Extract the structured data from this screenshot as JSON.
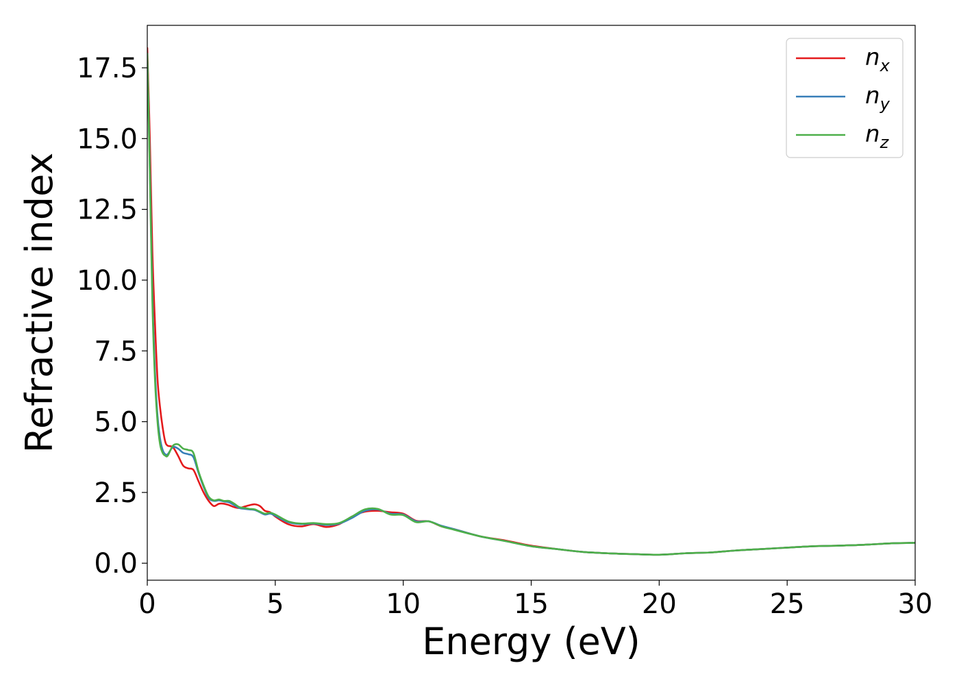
{
  "chart_data": {
    "type": "line",
    "xlabel": "Energy (eV)",
    "ylabel": "Refractive index",
    "xlim": [
      0,
      30
    ],
    "ylim": [
      -0.6,
      19.0
    ],
    "xticks": [
      0,
      5,
      10,
      15,
      20,
      25,
      30
    ],
    "xtick_labels": [
      "0",
      "5",
      "10",
      "15",
      "20",
      "25",
      "30"
    ],
    "yticks": [
      0.0,
      2.5,
      5.0,
      7.5,
      10.0,
      12.5,
      15.0,
      17.5
    ],
    "ytick_labels": [
      "0.0",
      "2.5",
      "5.0",
      "7.5",
      "10.0",
      "12.5",
      "15.0",
      "17.5"
    ],
    "grid": false,
    "legend_position": "top-right",
    "series": [
      {
        "name": "n",
        "subscript": "x",
        "color": "#e41a1c",
        "x": [
          0,
          0.1,
          0.2,
          0.3,
          0.4,
          0.5,
          0.6,
          0.7,
          0.8,
          1.0,
          1.2,
          1.4,
          1.6,
          1.8,
          2.0,
          2.2,
          2.4,
          2.6,
          2.8,
          3.0,
          3.2,
          3.4,
          3.6,
          3.8,
          4.0,
          4.2,
          4.4,
          4.6,
          4.8,
          5.0,
          5.5,
          6.0,
          6.5,
          7.0,
          7.5,
          8.0,
          8.5,
          9.0,
          9.5,
          10.0,
          10.5,
          11.0,
          11.5,
          12.0,
          13.0,
          14.0,
          15.0,
          16.0,
          17.0,
          18.0,
          19.0,
          20.0,
          21.0,
          22.0,
          23.0,
          24.0,
          25.0,
          26.0,
          27.0,
          28.0,
          29.0,
          30.0
        ],
        "y": [
          18.2,
          15.0,
          11.0,
          8.5,
          6.5,
          5.5,
          4.8,
          4.3,
          4.15,
          4.1,
          3.8,
          3.45,
          3.35,
          3.3,
          2.9,
          2.5,
          2.2,
          2.02,
          2.1,
          2.1,
          2.05,
          1.98,
          1.95,
          2.0,
          2.05,
          2.08,
          2.02,
          1.85,
          1.8,
          1.65,
          1.38,
          1.3,
          1.38,
          1.28,
          1.38,
          1.65,
          1.82,
          1.85,
          1.8,
          1.75,
          1.5,
          1.48,
          1.3,
          1.2,
          0.95,
          0.8,
          0.62,
          0.5,
          0.4,
          0.35,
          0.32,
          0.3,
          0.35,
          0.38,
          0.45,
          0.5,
          0.55,
          0.6,
          0.62,
          0.65,
          0.7,
          0.72
        ]
      },
      {
        "name": "n",
        "subscript": "y",
        "color": "#377eb8",
        "x": [
          0,
          0.1,
          0.2,
          0.3,
          0.4,
          0.5,
          0.6,
          0.7,
          0.8,
          1.0,
          1.2,
          1.4,
          1.6,
          1.8,
          2.0,
          2.2,
          2.4,
          2.6,
          2.8,
          3.0,
          3.2,
          3.4,
          3.6,
          3.8,
          4.0,
          4.2,
          4.4,
          4.6,
          4.8,
          5.0,
          5.5,
          6.0,
          6.5,
          7.0,
          7.5,
          8.0,
          8.5,
          9.0,
          9.5,
          10.0,
          10.5,
          11.0,
          11.5,
          12.0,
          13.0,
          14.0,
          15.0,
          16.0,
          17.0,
          18.0,
          19.0,
          20.0,
          21.0,
          22.0,
          23.0,
          24.0,
          25.0,
          26.0,
          27.0,
          28.0,
          29.0,
          30.0
        ],
        "y": [
          18.0,
          14.0,
          9.5,
          6.8,
          5.2,
          4.4,
          4.0,
          3.85,
          3.85,
          4.1,
          4.05,
          3.9,
          3.85,
          3.75,
          3.2,
          2.7,
          2.3,
          2.2,
          2.22,
          2.18,
          2.15,
          2.05,
          1.95,
          1.92,
          1.9,
          1.88,
          1.8,
          1.72,
          1.75,
          1.68,
          1.45,
          1.38,
          1.4,
          1.35,
          1.4,
          1.6,
          1.85,
          1.9,
          1.75,
          1.72,
          1.48,
          1.48,
          1.32,
          1.2,
          0.95,
          0.78,
          0.6,
          0.5,
          0.4,
          0.35,
          0.32,
          0.3,
          0.35,
          0.38,
          0.45,
          0.5,
          0.55,
          0.6,
          0.62,
          0.65,
          0.7,
          0.72
        ]
      },
      {
        "name": "n",
        "subscript": "z",
        "color": "#4daf4a",
        "x": [
          0,
          0.1,
          0.2,
          0.3,
          0.4,
          0.5,
          0.6,
          0.7,
          0.8,
          1.0,
          1.2,
          1.4,
          1.6,
          1.8,
          2.0,
          2.2,
          2.4,
          2.6,
          2.8,
          3.0,
          3.2,
          3.4,
          3.6,
          3.8,
          4.0,
          4.2,
          4.4,
          4.6,
          4.8,
          5.0,
          5.5,
          6.0,
          6.5,
          7.0,
          7.5,
          8.0,
          8.5,
          9.0,
          9.5,
          10.0,
          10.5,
          11.0,
          11.5,
          12.0,
          13.0,
          14.0,
          15.0,
          16.0,
          17.0,
          18.0,
          19.0,
          20.0,
          21.0,
          22.0,
          23.0,
          24.0,
          25.0,
          26.0,
          27.0,
          28.0,
          29.0,
          30.0
        ],
        "y": [
          18.0,
          13.8,
          9.2,
          6.5,
          5.0,
          4.2,
          3.9,
          3.8,
          3.8,
          4.15,
          4.2,
          4.05,
          4.0,
          3.9,
          3.25,
          2.75,
          2.35,
          2.22,
          2.25,
          2.2,
          2.2,
          2.1,
          1.98,
          1.95,
          1.92,
          1.9,
          1.82,
          1.75,
          1.78,
          1.72,
          1.48,
          1.4,
          1.42,
          1.38,
          1.42,
          1.65,
          1.9,
          1.92,
          1.72,
          1.7,
          1.45,
          1.48,
          1.3,
          1.18,
          0.95,
          0.78,
          0.6,
          0.5,
          0.4,
          0.35,
          0.32,
          0.3,
          0.35,
          0.38,
          0.45,
          0.5,
          0.55,
          0.6,
          0.62,
          0.65,
          0.7,
          0.72
        ]
      }
    ]
  }
}
